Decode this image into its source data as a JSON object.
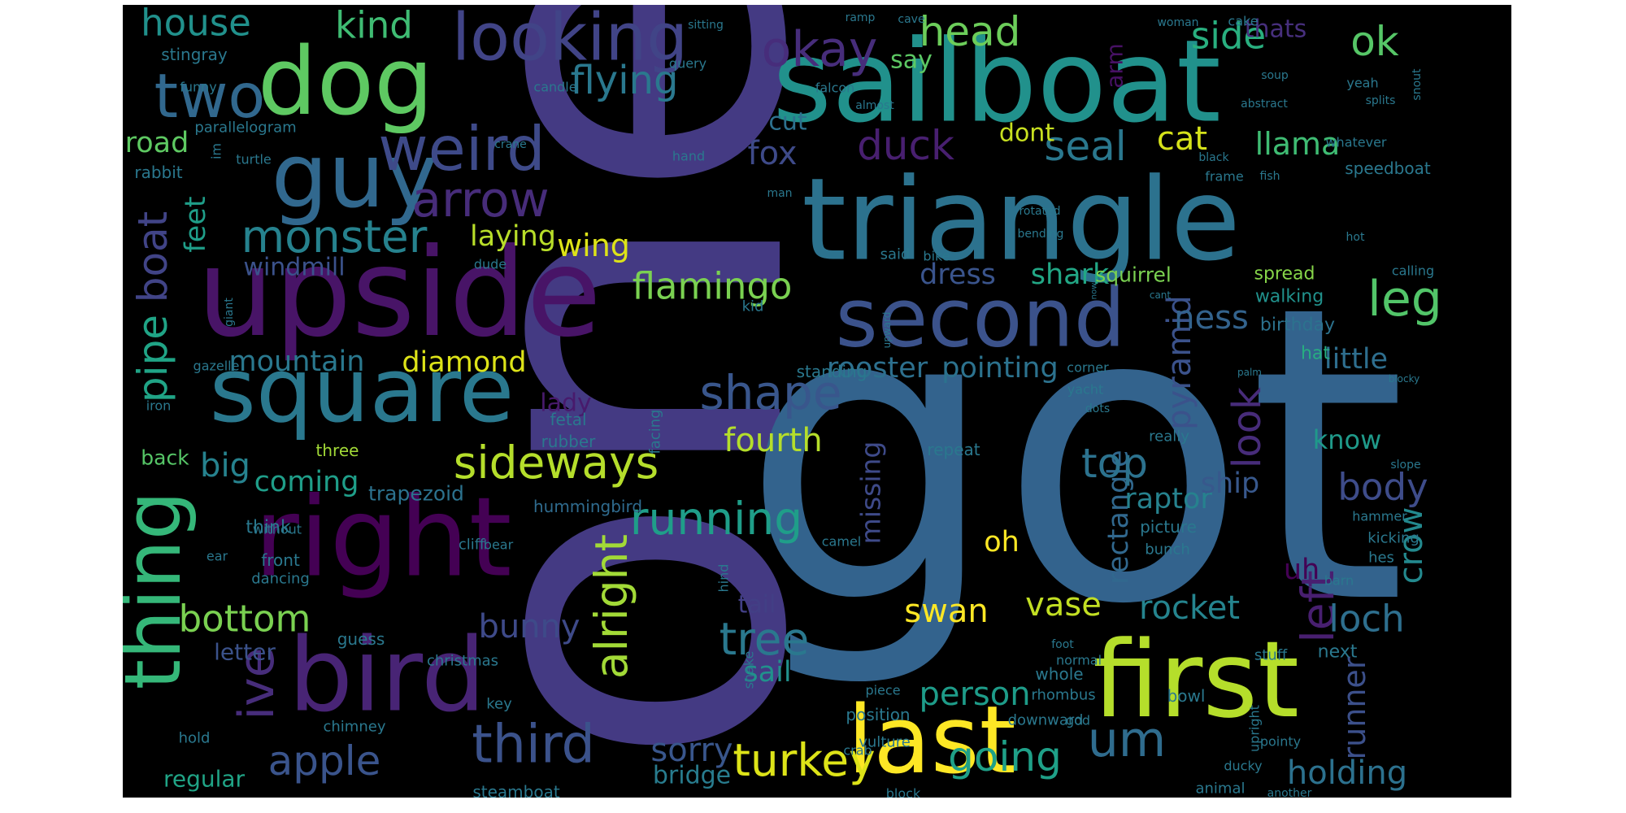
{
  "wordcloud": {
    "background": "#000000",
    "words": [
      {
        "text": "one",
        "color": "#443a83"
      },
      {
        "text": "got",
        "color": "#33638d"
      },
      {
        "text": "sailboat",
        "color": "#21918c"
      },
      {
        "text": "triangle",
        "color": "#2c728e"
      },
      {
        "text": "upside",
        "color": "#481467"
      },
      {
        "text": "first",
        "color": "#b5de2b"
      },
      {
        "text": "right",
        "color": "#440154"
      },
      {
        "text": "bird",
        "color": "#482475"
      },
      {
        "text": "last",
        "color": "#fde725"
      },
      {
        "text": "dog",
        "color": "#5ec962"
      },
      {
        "text": "guy",
        "color": "#31688e"
      },
      {
        "text": "square",
        "color": "#2a788e"
      },
      {
        "text": "second",
        "color": "#3b528b"
      },
      {
        "text": "thing",
        "color": "#35b779"
      },
      {
        "text": "looking",
        "color": "#414487"
      },
      {
        "text": "weird",
        "color": "#3e4a89"
      },
      {
        "text": "two",
        "color": "#31688e"
      },
      {
        "text": "okay",
        "color": "#472d7b"
      },
      {
        "text": "arrow",
        "color": "#472c7a"
      },
      {
        "text": "sideways",
        "color": "#b5de2b"
      },
      {
        "text": "third",
        "color": "#3b528b"
      },
      {
        "text": "flamingo",
        "color": "#7ad151"
      },
      {
        "text": "running",
        "color": "#1f9e89"
      },
      {
        "text": "shape",
        "color": "#39568c"
      },
      {
        "text": "monster",
        "color": "#26828e"
      },
      {
        "text": "boat",
        "color": "#414487"
      },
      {
        "text": "pipe",
        "color": "#20a486"
      },
      {
        "text": "ive",
        "color": "#472d7b"
      },
      {
        "text": "bottom",
        "color": "#7ad151"
      },
      {
        "text": "alright",
        "color": "#a2da37"
      },
      {
        "text": "turkey",
        "color": "#dde318"
      },
      {
        "text": "tree",
        "color": "#2a788e"
      },
      {
        "text": "going",
        "color": "#1fa088"
      },
      {
        "text": "um",
        "color": "#2f6c8e"
      },
      {
        "text": "apple",
        "color": "#3a548c"
      },
      {
        "text": "head",
        "color": "#6ccd5a"
      },
      {
        "text": "kind",
        "color": "#3fbc73"
      },
      {
        "text": "house",
        "color": "#21918c"
      },
      {
        "text": "duck",
        "color": "#481f70"
      },
      {
        "text": "seal",
        "color": "#2a788e"
      },
      {
        "text": "flying",
        "color": "#2a788e"
      },
      {
        "text": "ok",
        "color": "#56c667"
      },
      {
        "text": "side",
        "color": "#29af7f"
      },
      {
        "text": "leg",
        "color": "#52c569"
      },
      {
        "text": "look",
        "color": "#472c7a"
      },
      {
        "text": "left",
        "color": "#481f70"
      },
      {
        "text": "pyramid",
        "color": "#3b528b"
      },
      {
        "text": "rectangle",
        "color": "#31688e"
      },
      {
        "text": "top",
        "color": "#2c728e"
      },
      {
        "text": "body",
        "color": "#3e4c8a"
      },
      {
        "text": "loch",
        "color": "#2e6f8e"
      },
      {
        "text": "fourth",
        "color": "#b5de2b"
      },
      {
        "text": "swan",
        "color": "#fde725"
      },
      {
        "text": "vase",
        "color": "#c2df23"
      },
      {
        "text": "rocket",
        "color": "#25848e"
      },
      {
        "text": "sorry",
        "color": "#39568c"
      },
      {
        "text": "bunny",
        "color": "#3e4a89"
      },
      {
        "text": "big",
        "color": "#26828e"
      },
      {
        "text": "person",
        "color": "#1e9c89"
      },
      {
        "text": "holding",
        "color": "#2c718e"
      },
      {
        "text": "crow",
        "color": "#23898e"
      },
      {
        "text": "runner",
        "color": "#3c508b"
      },
      {
        "text": "fox",
        "color": "#3e4a89"
      },
      {
        "text": "cat",
        "color": "#d5e21a"
      },
      {
        "text": "llama",
        "color": "#3fbc73"
      },
      {
        "text": "dress",
        "color": "#3a548c"
      },
      {
        "text": "shark",
        "color": "#22a785"
      },
      {
        "text": "rooster",
        "color": "#2d708e"
      },
      {
        "text": "pointing",
        "color": "#2c728e"
      },
      {
        "text": "ness",
        "color": "#33638d"
      },
      {
        "text": "raptor",
        "color": "#26828e"
      },
      {
        "text": "ship",
        "color": "#38588c"
      },
      {
        "text": "know",
        "color": "#1f9a8a"
      },
      {
        "text": "little",
        "color": "#2e6e8e"
      },
      {
        "text": "road",
        "color": "#5ec962"
      },
      {
        "text": "feet",
        "color": "#1f9e89"
      },
      {
        "text": "wing",
        "color": "#dde318"
      },
      {
        "text": "laying",
        "color": "#b8de29"
      },
      {
        "text": "windmill",
        "color": "#3b528b"
      },
      {
        "text": "mountain",
        "color": "#2a788e"
      },
      {
        "text": "diamond",
        "color": "#dde318"
      },
      {
        "text": "coming",
        "color": "#1f9e89"
      },
      {
        "text": "sail",
        "color": "#21918c"
      },
      {
        "text": "tail",
        "color": "#423f85"
      },
      {
        "text": "lady",
        "color": "#481a6c"
      },
      {
        "text": "missing",
        "color": "#3e4a89"
      },
      {
        "text": "oh",
        "color": "#fde725"
      },
      {
        "text": "uh",
        "color": "#440154"
      },
      {
        "text": "bridge",
        "color": "#287c8e"
      },
      {
        "text": "say",
        "color": "#5cc863"
      },
      {
        "text": "cut",
        "color": "#2d718e"
      },
      {
        "text": "dont",
        "color": "#c8e020"
      },
      {
        "text": "arm",
        "color": "#471164"
      },
      {
        "text": "thats",
        "color": "#472f7d"
      },
      {
        "text": "squirrel",
        "color": "#7ad151"
      },
      {
        "text": "spread",
        "color": "#86d549"
      },
      {
        "text": "walking",
        "color": "#21918c"
      },
      {
        "text": "birthday",
        "color": "#2c728e"
      },
      {
        "text": "hat",
        "color": "#27ad81"
      },
      {
        "text": "regular",
        "color": "#20a486"
      },
      {
        "text": "letter",
        "color": "#3b528b"
      },
      {
        "text": "back",
        "color": "#56c667"
      },
      {
        "text": "three",
        "color": "#a2da37"
      },
      {
        "text": "trapezoid",
        "color": "#2c728e"
      },
      {
        "text": "hummingbird",
        "color": "#2f6b8e"
      },
      {
        "text": "think",
        "color": "#2a788e"
      },
      {
        "text": "cliff",
        "color": "#2a788e"
      },
      {
        "text": "front",
        "color": "#2a788e"
      },
      {
        "text": "dancing",
        "color": "#2a788e"
      },
      {
        "text": "guess",
        "color": "#2a788e"
      },
      {
        "text": "christmas",
        "color": "#2a788e"
      },
      {
        "text": "rubber",
        "color": "#2a788e"
      },
      {
        "text": "fetal",
        "color": "#2a788e"
      },
      {
        "text": "facing",
        "color": "#2a788e"
      },
      {
        "text": "kid",
        "color": "#2a788e"
      },
      {
        "text": "standing",
        "color": "#2a788e"
      },
      {
        "text": "repeat",
        "color": "#2a788e"
      },
      {
        "text": "really",
        "color": "#2a788e"
      },
      {
        "text": "picture",
        "color": "#2a788e"
      },
      {
        "text": "bunch",
        "color": "#2a788e"
      },
      {
        "text": "camel",
        "color": "#2a788e"
      },
      {
        "text": "hammer",
        "color": "#2a788e"
      },
      {
        "text": "kicking",
        "color": "#2a788e"
      },
      {
        "text": "hes",
        "color": "#2a788e"
      },
      {
        "text": "barn",
        "color": "#2a788e"
      },
      {
        "text": "next",
        "color": "#2a788e"
      },
      {
        "text": "stuff",
        "color": "#2a788e"
      },
      {
        "text": "whole",
        "color": "#2a788e"
      },
      {
        "text": "rhombus",
        "color": "#2a788e"
      },
      {
        "text": "bowl",
        "color": "#2a788e"
      },
      {
        "text": "god",
        "color": "#2a788e"
      },
      {
        "text": "upright",
        "color": "#2a788e"
      },
      {
        "text": "pointy",
        "color": "#2a788e"
      },
      {
        "text": "ducky",
        "color": "#2a788e"
      },
      {
        "text": "another",
        "color": "#2a788e"
      },
      {
        "text": "animal",
        "color": "#2a788e"
      },
      {
        "text": "block",
        "color": "#2a788e"
      },
      {
        "text": "steamboat",
        "color": "#2a788e"
      },
      {
        "text": "crab",
        "color": "#2a788e"
      },
      {
        "text": "vulture",
        "color": "#2a788e"
      },
      {
        "text": "position",
        "color": "#2a788e"
      },
      {
        "text": "downward",
        "color": "#2a788e"
      },
      {
        "text": "piece",
        "color": "#2a788e"
      },
      {
        "text": "normal",
        "color": "#2a788e"
      },
      {
        "text": "foot",
        "color": "#2a788e"
      },
      {
        "text": "snake",
        "color": "#2a788e"
      },
      {
        "text": "hind",
        "color": "#2a788e"
      },
      {
        "text": "key",
        "color": "#2a788e"
      },
      {
        "text": "hold",
        "color": "#2a788e"
      },
      {
        "text": "chimney",
        "color": "#2a788e"
      },
      {
        "text": "stingray",
        "color": "#2a788e"
      },
      {
        "text": "parallelogram",
        "color": "#2a788e"
      },
      {
        "text": "rabbit",
        "color": "#2a788e"
      },
      {
        "text": "im",
        "color": "#2a788e"
      },
      {
        "text": "crane",
        "color": "#2a788e"
      },
      {
        "text": "turtle",
        "color": "#2a788e"
      },
      {
        "text": "funny",
        "color": "#2a788e"
      },
      {
        "text": "candle",
        "color": "#2a788e"
      },
      {
        "text": "falcon",
        "color": "#2a788e"
      },
      {
        "text": "query",
        "color": "#2a788e"
      },
      {
        "text": "sitting",
        "color": "#2a788e"
      },
      {
        "text": "ramp",
        "color": "#2a788e"
      },
      {
        "text": "cave",
        "color": "#2a788e"
      },
      {
        "text": "almost",
        "color": "#2a788e"
      },
      {
        "text": "hand",
        "color": "#2a788e"
      },
      {
        "text": "man",
        "color": "#2a788e"
      },
      {
        "text": "woman",
        "color": "#2a788e"
      },
      {
        "text": "cake",
        "color": "#2a788e"
      },
      {
        "text": "soup",
        "color": "#2a788e"
      },
      {
        "text": "abstract",
        "color": "#2a788e"
      },
      {
        "text": "black",
        "color": "#2a788e"
      },
      {
        "text": "frame",
        "color": "#2a788e"
      },
      {
        "text": "fish",
        "color": "#2a788e"
      },
      {
        "text": "whatever",
        "color": "#2a788e"
      },
      {
        "text": "yeah",
        "color": "#2a788e"
      },
      {
        "text": "snout",
        "color": "#2a788e"
      },
      {
        "text": "splits",
        "color": "#2a788e"
      },
      {
        "text": "speedboat",
        "color": "#2a788e"
      },
      {
        "text": "rotated",
        "color": "#2a788e"
      },
      {
        "text": "bending",
        "color": "#2a788e"
      },
      {
        "text": "bike",
        "color": "#2a788e"
      },
      {
        "text": "said",
        "color": "#2a788e"
      },
      {
        "text": "cant",
        "color": "#2a788e"
      },
      {
        "text": "upward",
        "color": "#2a788e"
      },
      {
        "text": "now",
        "color": "#2a788e"
      },
      {
        "text": "calling",
        "color": "#2a788e"
      },
      {
        "text": "hot",
        "color": "#2a788e"
      },
      {
        "text": "slope",
        "color": "#2a788e"
      },
      {
        "text": "palm",
        "color": "#2a788e"
      },
      {
        "text": "blocky",
        "color": "#2a788e"
      },
      {
        "text": "corner",
        "color": "#2a788e"
      },
      {
        "text": "yacht",
        "color": "#2a788e"
      },
      {
        "text": "dots",
        "color": "#2a788e"
      },
      {
        "text": "dude",
        "color": "#2a788e"
      },
      {
        "text": "giant",
        "color": "#2a788e"
      },
      {
        "text": "gazelle",
        "color": "#2a788e"
      },
      {
        "text": "iron",
        "color": "#2a788e"
      },
      {
        "text": "without",
        "color": "#2a788e"
      },
      {
        "text": "ear",
        "color": "#2a788e"
      },
      {
        "text": "bear",
        "color": "#2a788e"
      }
    ]
  }
}
